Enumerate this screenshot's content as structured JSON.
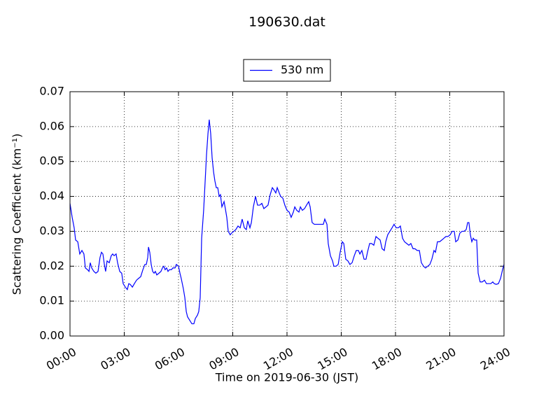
{
  "chart_data": {
    "type": "line",
    "title": "190630.dat",
    "x_label": "Time on 2019-06-30 (JST)",
    "y_label": "Scattering Coefficient (km⁻¹)",
    "legend": "upper center",
    "grid": true,
    "xlim": [
      0,
      24
    ],
    "xticks": [
      {
        "value": 0,
        "label": "00:00"
      },
      {
        "value": 3,
        "label": "03:00"
      },
      {
        "value": 6,
        "label": "06:00"
      },
      {
        "value": 9,
        "label": "09:00"
      },
      {
        "value": 12,
        "label": "12:00"
      },
      {
        "value": 15,
        "label": "15:00"
      },
      {
        "value": 18,
        "label": "18:00"
      },
      {
        "value": 21,
        "label": "21:00"
      },
      {
        "value": 24,
        "label": "24:00"
      }
    ],
    "ylim": [
      0,
      0.07
    ],
    "yticks": [
      {
        "value": 0,
        "label": "0.00"
      },
      0.01,
      0.02,
      0.03,
      0.04,
      0.05,
      0.06,
      0.07
    ],
    "x": [
      0,
      0.12,
      0.23,
      0.31,
      0.43,
      0.54,
      0.66,
      0.77,
      0.85,
      0.97,
      1.05,
      1.12,
      1.2,
      1.32,
      1.43,
      1.55,
      1.66,
      1.74,
      1.82,
      1.9,
      1.97,
      2.05,
      2.17,
      2.28,
      2.36,
      2.44,
      2.55,
      2.63,
      2.75,
      2.86,
      2.94,
      3.06,
      3.17,
      3.25,
      3.33,
      3.45,
      3.56,
      3.68,
      3.79,
      3.91,
      4.03,
      4.14,
      4.22,
      4.3,
      4.34,
      4.41,
      4.49,
      4.57,
      4.65,
      4.72,
      4.8,
      4.92,
      5.03,
      5.11,
      5.19,
      5.26,
      5.34,
      5.42,
      5.5,
      5.61,
      5.69,
      5.81,
      5.88,
      6,
      6.08,
      6.15,
      6.27,
      6.35,
      6.43,
      6.5,
      6.62,
      6.74,
      6.85,
      6.93,
      7.05,
      7.12,
      7.2,
      7.28,
      7.39,
      7.47,
      7.55,
      7.63,
      7.7,
      7.78,
      7.86,
      7.94,
      8.01,
      8.09,
      8.17,
      8.25,
      8.32,
      8.4,
      8.52,
      8.59,
      8.67,
      8.75,
      8.86,
      8.94,
      9.06,
      9.17,
      9.29,
      9.41,
      9.52,
      9.64,
      9.75,
      9.83,
      9.95,
      10.03,
      10.14,
      10.26,
      10.37,
      10.49,
      10.61,
      10.72,
      10.84,
      10.95,
      11.07,
      11.19,
      11.26,
      11.38,
      11.46,
      11.57,
      11.65,
      11.77,
      11.88,
      12,
      12.12,
      12.23,
      12.35,
      12.43,
      12.54,
      12.66,
      12.74,
      12.85,
      12.97,
      13.08,
      13.2,
      13.28,
      13.39,
      13.51,
      13.63,
      13.74,
      14.01,
      14.09,
      14.21,
      14.28,
      14.4,
      14.52,
      14.59,
      14.71,
      14.83,
      14.94,
      15.06,
      15.14,
      15.25,
      15.37,
      15.48,
      15.6,
      15.72,
      15.83,
      15.95,
      16.03,
      16.14,
      16.26,
      16.37,
      16.45,
      16.57,
      16.68,
      16.8,
      16.92,
      17.03,
      17.15,
      17.26,
      17.38,
      17.46,
      17.57,
      17.69,
      17.81,
      17.92,
      18.04,
      18.16,
      18.27,
      18.39,
      18.5,
      18.62,
      18.74,
      18.85,
      18.97,
      19.08,
      19.2,
      19.32,
      19.43,
      19.55,
      19.66,
      19.78,
      19.9,
      20.01,
      20.13,
      20.21,
      20.32,
      20.44,
      20.56,
      20.67,
      20.79,
      20.9,
      21.02,
      21.14,
      21.25,
      21.33,
      21.45,
      21.56,
      21.68,
      21.79,
      21.91,
      21.99,
      22.06,
      22.14,
      22.22,
      22.3,
      22.37,
      22.49,
      22.57,
      22.68,
      22.8,
      22.92,
      23.03,
      23.15,
      23.27,
      23.38,
      23.46,
      23.57,
      23.69,
      23.81,
      23.92,
      24
    ],
    "series": [
      {
        "name": "530 nm",
        "color": "#0000ff",
        "values": [
          0.038,
          0.034,
          0.031,
          0.0275,
          0.027,
          0.0235,
          0.0245,
          0.0235,
          0.0195,
          0.019,
          0.0185,
          0.021,
          0.0195,
          0.0185,
          0.018,
          0.0185,
          0.0225,
          0.024,
          0.0235,
          0.0205,
          0.0185,
          0.0215,
          0.021,
          0.023,
          0.0235,
          0.023,
          0.0235,
          0.021,
          0.0185,
          0.018,
          0.015,
          0.014,
          0.0133,
          0.015,
          0.0148,
          0.014,
          0.015,
          0.016,
          0.0165,
          0.017,
          0.019,
          0.0205,
          0.0205,
          0.0225,
          0.0255,
          0.024,
          0.0205,
          0.0185,
          0.018,
          0.0185,
          0.0175,
          0.018,
          0.0185,
          0.0195,
          0.02,
          0.019,
          0.0195,
          0.0185,
          0.019,
          0.019,
          0.0195,
          0.0195,
          0.0205,
          0.02,
          0.018,
          0.0165,
          0.0135,
          0.011,
          0.007,
          0.0055,
          0.0045,
          0.0035,
          0.0035,
          0.005,
          0.006,
          0.007,
          0.011,
          0.028,
          0.036,
          0.044,
          0.052,
          0.058,
          0.062,
          0.058,
          0.051,
          0.047,
          0.0445,
          0.0425,
          0.0425,
          0.04,
          0.0405,
          0.037,
          0.0385,
          0.0365,
          0.034,
          0.03,
          0.029,
          0.0295,
          0.03,
          0.0305,
          0.0315,
          0.031,
          0.0335,
          0.031,
          0.0305,
          0.033,
          0.031,
          0.0325,
          0.037,
          0.04,
          0.0375,
          0.0375,
          0.038,
          0.0365,
          0.037,
          0.0375,
          0.0405,
          0.0425,
          0.042,
          0.041,
          0.0425,
          0.041,
          0.04,
          0.0395,
          0.0375,
          0.036,
          0.0355,
          0.034,
          0.0355,
          0.037,
          0.036,
          0.0355,
          0.037,
          0.036,
          0.0365,
          0.0375,
          0.0385,
          0.037,
          0.0325,
          0.032,
          0.032,
          0.032,
          0.032,
          0.0335,
          0.032,
          0.0265,
          0.023,
          0.0215,
          0.02,
          0.02,
          0.0205,
          0.024,
          0.027,
          0.0265,
          0.022,
          0.0215,
          0.0205,
          0.021,
          0.023,
          0.0245,
          0.0245,
          0.0235,
          0.0245,
          0.022,
          0.022,
          0.024,
          0.0265,
          0.0265,
          0.026,
          0.0285,
          0.028,
          0.0275,
          0.025,
          0.0245,
          0.027,
          0.029,
          0.03,
          0.031,
          0.032,
          0.031,
          0.031,
          0.0315,
          0.028,
          0.027,
          0.0265,
          0.026,
          0.0265,
          0.025,
          0.025,
          0.0245,
          0.0245,
          0.021,
          0.02,
          0.0195,
          0.02,
          0.0205,
          0.022,
          0.0245,
          0.024,
          0.027,
          0.027,
          0.0275,
          0.028,
          0.0285,
          0.0285,
          0.029,
          0.03,
          0.03,
          0.027,
          0.0275,
          0.0295,
          0.03,
          0.03,
          0.0305,
          0.0325,
          0.0325,
          0.029,
          0.027,
          0.028,
          0.0275,
          0.0275,
          0.018,
          0.0155,
          0.0155,
          0.016,
          0.015,
          0.015,
          0.015,
          0.0155,
          0.015,
          0.0148,
          0.015,
          0.0165,
          0.019,
          0.0205
        ]
      }
    ]
  }
}
